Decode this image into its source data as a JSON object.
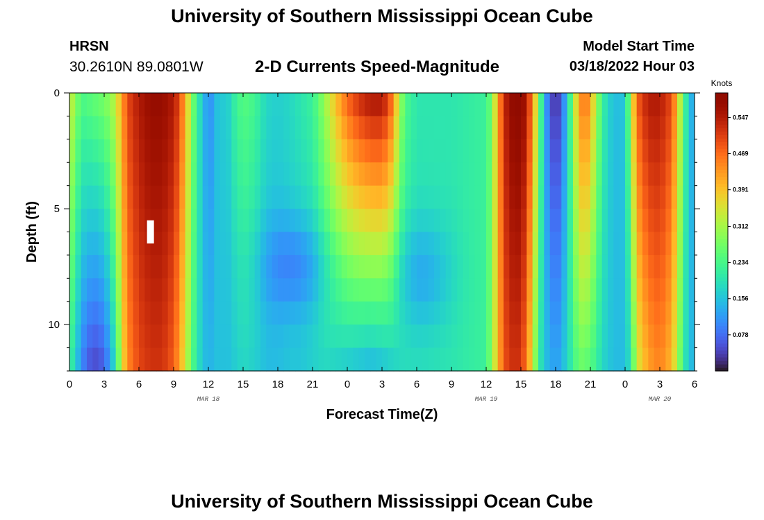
{
  "header": {
    "title": "University of Southern Mississippi Ocean Cube",
    "station": "HRSN",
    "coordinates": "30.2610N  89.0801W",
    "chart_title": "2-D Currents Speed-Magnitude",
    "model_label": "Model Start Time",
    "model_time": "03/18/2022 Hour 03"
  },
  "footer": {
    "title": "University of Southern Mississippi Ocean Cube"
  },
  "colors": {
    "marker": "#ffffff",
    "background": "#ffffff"
  },
  "chart_data": {
    "type": "heatmap",
    "title": "2-D Currents Speed-Magnitude",
    "xlabel": "Forecast Time(Z)",
    "ylabel": "Depth (ft)",
    "xlim": [
      0,
      54
    ],
    "ylim": [
      12,
      0
    ],
    "x_ticks": [
      0,
      3,
      6,
      9,
      12,
      15,
      18,
      21,
      24,
      27,
      30,
      33,
      36,
      39,
      42,
      45,
      48,
      51,
      54
    ],
    "x_tick_labels": [
      "0",
      "3",
      "6",
      "9",
      "12",
      "15",
      "18",
      "21",
      "0",
      "3",
      "6",
      "9",
      "12",
      "15",
      "18",
      "21",
      "0",
      "3",
      "6"
    ],
    "date_labels": [
      {
        "x": 12,
        "text": "MAR 18"
      },
      {
        "x": 36,
        "text": "MAR 19"
      },
      {
        "x": 51,
        "text": "MAR 20"
      }
    ],
    "y_ticks": [
      0,
      5,
      10
    ],
    "y_tick_labels": [
      "0",
      "5",
      "10"
    ],
    "depths": [
      0.5,
      1.5,
      2.5,
      3.5,
      4.5,
      5.5,
      6.5,
      7.5,
      8.5,
      9.5,
      10.5,
      11.5
    ],
    "colorbar": {
      "unit": "Knots",
      "min": 0,
      "max": 0.6,
      "ticks": [
        0.078,
        0.156,
        0.234,
        0.312,
        0.391,
        0.469,
        0.547
      ],
      "tick_labels": [
        "0.078",
        "0.156",
        "0.234",
        "0.312",
        "0.391",
        "0.469",
        "0.547"
      ],
      "colormap": "turbo"
    },
    "marker": {
      "x": 7,
      "y_from": 5.5,
      "y_to": 6.5
    },
    "time_profiles": [
      {
        "t": 0.0,
        "top": 0.35,
        "bottom": 0.22
      },
      {
        "t": 0.5,
        "top": 0.3,
        "bottom": 0.18
      },
      {
        "t": 1.0,
        "top": 0.24,
        "bottom": 0.1
      },
      {
        "t": 2.0,
        "top": 0.26,
        "bottom": 0.04
      },
      {
        "t": 3.0,
        "top": 0.28,
        "bottom": 0.06
      },
      {
        "t": 3.5,
        "top": 0.3,
        "bottom": 0.12
      },
      {
        "t": 4.0,
        "top": 0.34,
        "bottom": 0.2
      },
      {
        "t": 4.5,
        "top": 0.42,
        "bottom": 0.34
      },
      {
        "t": 5.0,
        "top": 0.5,
        "bottom": 0.44
      },
      {
        "t": 6.0,
        "top": 0.55,
        "bottom": 0.5
      },
      {
        "t": 7.0,
        "top": 0.58,
        "bottom": 0.52
      },
      {
        "t": 8.0,
        "top": 0.58,
        "bottom": 0.52
      },
      {
        "t": 9.0,
        "top": 0.55,
        "bottom": 0.48
      },
      {
        "t": 9.5,
        "top": 0.5,
        "bottom": 0.42
      },
      {
        "t": 10.0,
        "top": 0.42,
        "bottom": 0.35
      },
      {
        "t": 10.5,
        "top": 0.3,
        "bottom": 0.26
      },
      {
        "t": 11.0,
        "top": 0.22,
        "bottom": 0.2
      },
      {
        "t": 11.5,
        "top": 0.16,
        "bottom": 0.16
      },
      {
        "t": 12.0,
        "top": 0.1,
        "bottom": 0.14
      },
      {
        "t": 12.5,
        "top": 0.13,
        "bottom": 0.15
      },
      {
        "t": 13.0,
        "top": 0.18,
        "bottom": 0.16
      },
      {
        "t": 13.5,
        "top": 0.15,
        "bottom": 0.15
      },
      {
        "t": 14.0,
        "top": 0.2,
        "bottom": 0.16
      },
      {
        "t": 15.0,
        "top": 0.25,
        "bottom": 0.18
      },
      {
        "t": 16.0,
        "top": 0.23,
        "bottom": 0.17
      },
      {
        "t": 17.0,
        "top": 0.18,
        "bottom": 0.15
      },
      {
        "t": 18.0,
        "top": 0.17,
        "bottom": 0.15
      },
      {
        "t": 19.0,
        "top": 0.18,
        "bottom": 0.16
      },
      {
        "t": 20.0,
        "top": 0.2,
        "bottom": 0.16
      },
      {
        "t": 21.0,
        "top": 0.22,
        "bottom": 0.17
      },
      {
        "t": 22.0,
        "top": 0.3,
        "bottom": 0.18
      },
      {
        "t": 23.0,
        "top": 0.4,
        "bottom": 0.17
      },
      {
        "t": 24.0,
        "top": 0.48,
        "bottom": 0.16
      },
      {
        "t": 25.0,
        "top": 0.53,
        "bottom": 0.15
      },
      {
        "t": 26.0,
        "top": 0.56,
        "bottom": 0.14
      },
      {
        "t": 27.0,
        "top": 0.56,
        "bottom": 0.15
      },
      {
        "t": 27.5,
        "top": 0.52,
        "bottom": 0.16
      },
      {
        "t": 28.0,
        "top": 0.45,
        "bottom": 0.17
      },
      {
        "t": 28.5,
        "top": 0.32,
        "bottom": 0.18
      },
      {
        "t": 29.0,
        "top": 0.24,
        "bottom": 0.19
      },
      {
        "t": 30.0,
        "top": 0.2,
        "bottom": 0.19
      },
      {
        "t": 33.0,
        "top": 0.2,
        "bottom": 0.2
      },
      {
        "t": 36.0,
        "top": 0.22,
        "bottom": 0.22
      },
      {
        "t": 36.5,
        "top": 0.28,
        "bottom": 0.3
      },
      {
        "t": 37.0,
        "top": 0.42,
        "bottom": 0.4
      },
      {
        "t": 37.5,
        "top": 0.52,
        "bottom": 0.48
      },
      {
        "t": 38.0,
        "top": 0.58,
        "bottom": 0.52
      },
      {
        "t": 39.0,
        "top": 0.6,
        "bottom": 0.52
      },
      {
        "t": 39.5,
        "top": 0.55,
        "bottom": 0.45
      },
      {
        "t": 40.0,
        "top": 0.45,
        "bottom": 0.35
      },
      {
        "t": 40.5,
        "top": 0.3,
        "bottom": 0.22
      },
      {
        "t": 41.0,
        "top": 0.15,
        "bottom": 0.16
      },
      {
        "t": 41.5,
        "top": 0.06,
        "bottom": 0.14
      },
      {
        "t": 42.0,
        "top": 0.02,
        "bottom": 0.12
      },
      {
        "t": 42.5,
        "top": 0.06,
        "bottom": 0.14
      },
      {
        "t": 43.0,
        "top": 0.16,
        "bottom": 0.18
      },
      {
        "t": 43.5,
        "top": 0.3,
        "bottom": 0.22
      },
      {
        "t": 44.0,
        "top": 0.42,
        "bottom": 0.26
      },
      {
        "t": 44.5,
        "top": 0.48,
        "bottom": 0.26
      },
      {
        "t": 45.0,
        "top": 0.42,
        "bottom": 0.24
      },
      {
        "t": 45.5,
        "top": 0.32,
        "bottom": 0.22
      },
      {
        "t": 46.0,
        "top": 0.22,
        "bottom": 0.18
      },
      {
        "t": 47.0,
        "top": 0.15,
        "bottom": 0.15
      },
      {
        "t": 48.0,
        "top": 0.16,
        "bottom": 0.15
      },
      {
        "t": 48.5,
        "top": 0.32,
        "bottom": 0.2
      },
      {
        "t": 49.0,
        "top": 0.48,
        "bottom": 0.34
      },
      {
        "t": 50.0,
        "top": 0.55,
        "bottom": 0.42
      },
      {
        "t": 51.0,
        "top": 0.55,
        "bottom": 0.45
      },
      {
        "t": 52.0,
        "top": 0.5,
        "bottom": 0.4
      },
      {
        "t": 52.5,
        "top": 0.4,
        "bottom": 0.32
      },
      {
        "t": 53.0,
        "top": 0.26,
        "bottom": 0.22
      },
      {
        "t": 53.5,
        "top": 0.16,
        "bottom": 0.16
      },
      {
        "t": 54.0,
        "top": 0.12,
        "bottom": 0.14
      }
    ],
    "depth_notes": "Speed at depth d interpolates from top to bottom; mid-depth dips near Mar 18 21Z and Mar 19 06Z"
  }
}
